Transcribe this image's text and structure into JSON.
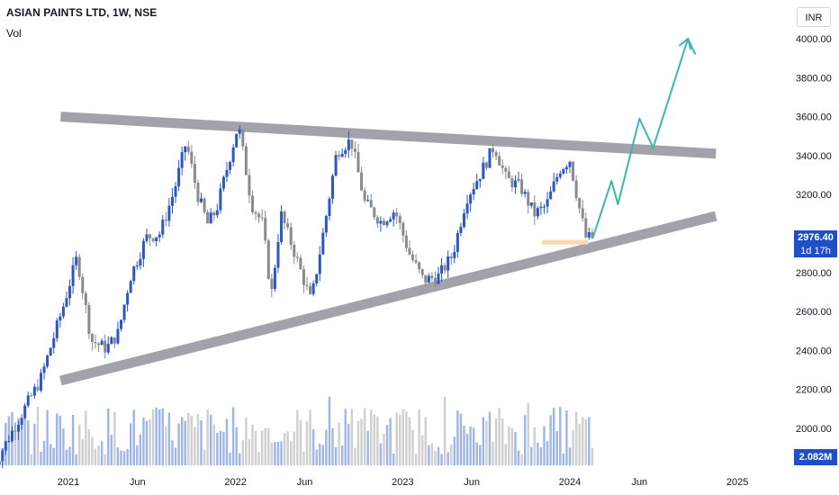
{
  "header": {
    "title": "ASIAN PAINTS LTD, 1W, NSE",
    "volume_label": "Vol"
  },
  "currency_button": "INR",
  "last_price": {
    "value": "2976.40",
    "countdown": "1d 17h"
  },
  "volume_value": "2.082M",
  "colors": {
    "up": "#2a56c6",
    "down": "#8a8a8a",
    "volume_up": "#9fb5e8",
    "volume_down": "#cfcfcf",
    "channel_band": "#9e9ea6",
    "projection": "#3bb6b0",
    "support_zone": "#f8d9b0",
    "price_tag": "#1e4fc9"
  },
  "chart_data": {
    "type": "candlestick",
    "title": "ASIAN PAINTS LTD, 1W, NSE",
    "currency": "INR",
    "x_axis": {
      "ticks": [
        "2021",
        "Jun",
        "2022",
        "Jun",
        "2023",
        "Jun",
        "2024",
        "Jun",
        "2025"
      ],
      "tick_dates": [
        "2021-01-01",
        "2021-06-01",
        "2022-01-01",
        "2022-06-01",
        "2023-01-01",
        "2023-06-01",
        "2024-01-01",
        "2024-06-01",
        "2025-01-01"
      ]
    },
    "y_axis": {
      "ticks": [
        "2000.00",
        "2200.00",
        "2400.00",
        "2600.00",
        "2800.00",
        "3000.00",
        "3200.00",
        "3400.00",
        "3600.00",
        "3800.00",
        "4000.00"
      ],
      "range": [
        1900,
        4100
      ]
    },
    "price_path": [
      [
        "2020-07-20",
        1800
      ],
      [
        "2020-09-15",
        2050
      ],
      [
        "2020-11-01",
        2250
      ],
      [
        "2020-12-20",
        2620
      ],
      [
        "2021-01-20",
        2880
      ],
      [
        "2021-02-20",
        2450
      ],
      [
        "2021-03-25",
        2410
      ],
      [
        "2021-04-20",
        2490
      ],
      [
        "2021-05-15",
        2770
      ],
      [
        "2021-06-20",
        2980
      ],
      [
        "2021-07-20",
        3000
      ],
      [
        "2021-08-20",
        3220
      ],
      [
        "2021-09-15",
        3470
      ],
      [
        "2021-10-10",
        3200
      ],
      [
        "2021-11-01",
        3050
      ],
      [
        "2021-11-20",
        3120
      ],
      [
        "2021-12-15",
        3350
      ],
      [
        "2022-01-07",
        3560
      ],
      [
        "2022-02-05",
        3150
      ],
      [
        "2022-03-01",
        3050
      ],
      [
        "2022-03-20",
        2680
      ],
      [
        "2022-04-10",
        3100
      ],
      [
        "2022-05-10",
        2900
      ],
      [
        "2022-06-15",
        2650
      ],
      [
        "2022-07-15",
        3050
      ],
      [
        "2022-08-10",
        3420
      ],
      [
        "2022-09-10",
        3480
      ],
      [
        "2022-10-10",
        3160
      ],
      [
        "2022-11-15",
        3060
      ],
      [
        "2022-12-15",
        3120
      ],
      [
        "2023-01-15",
        2900
      ],
      [
        "2023-02-15",
        2760
      ],
      [
        "2023-03-20",
        2780
      ],
      [
        "2023-04-20",
        2890
      ],
      [
        "2023-05-20",
        3180
      ],
      [
        "2023-06-20",
        3310
      ],
      [
        "2023-07-20",
        3450
      ],
      [
        "2023-08-15",
        3280
      ],
      [
        "2023-09-15",
        3240
      ],
      [
        "2023-10-15",
        3100
      ],
      [
        "2023-11-10",
        3140
      ],
      [
        "2023-12-10",
        3330
      ],
      [
        "2024-01-01",
        3380
      ],
      [
        "2024-01-20",
        3150
      ],
      [
        "2024-02-05",
        2980
      ],
      [
        "2024-02-20",
        2976
      ]
    ],
    "channel_lines": [
      {
        "name": "",
        "points": [
          [
            "2020-12-15",
            3600
          ],
          [
            "2024-11-15",
            3410
          ]
        ]
      },
      {
        "name": "",
        "points": [
          [
            "2020-12-15",
            2245
          ],
          [
            "2024-11-15",
            3090
          ]
        ]
      }
    ],
    "support_zone": {
      "from": "2023-11-01",
      "to": "2024-02-10",
      "level": 2955
    },
    "projection_path": [
      [
        "2024-02-20",
        2976
      ],
      [
        "2024-04-01",
        3270
      ],
      [
        "2024-04-15",
        3150
      ],
      [
        "2024-06-01",
        3590
      ],
      [
        "2024-07-01",
        3440
      ],
      [
        "2024-09-15",
        4000
      ],
      [
        "2024-10-01",
        3920
      ]
    ],
    "volume": {
      "max_label": "2.082M"
    }
  }
}
